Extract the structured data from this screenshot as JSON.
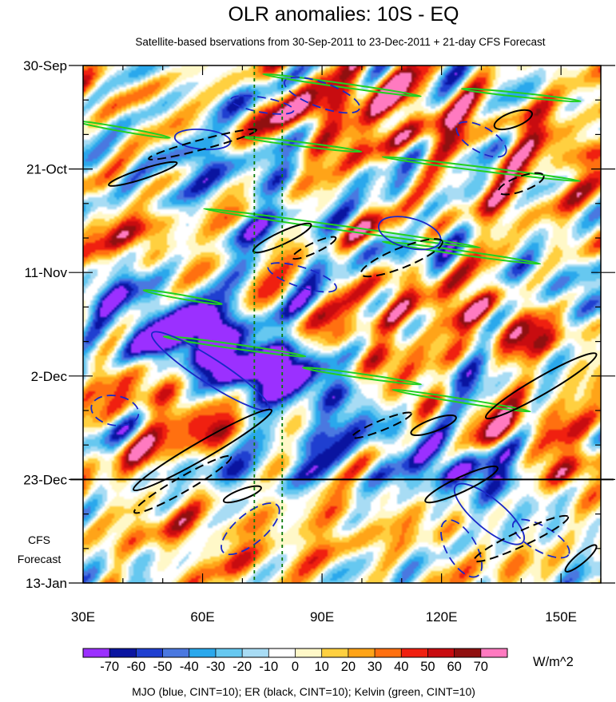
{
  "chart_data": {
    "type": "heatmap",
    "title": "OLR anomalies: 10S - EQ",
    "subtitle": "Satellite-based bservations from 30-Sep-2011 to 23-Dec-2011 + 21-day CFS Forecast",
    "xlabel": "",
    "ylabel": "",
    "x_range": [
      30,
      160
    ],
    "x_ticks": [
      {
        "value": 30,
        "label": "30E"
      },
      {
        "value": 60,
        "label": "60E"
      },
      {
        "value": 90,
        "label": "90E"
      },
      {
        "value": 120,
        "label": "120E"
      },
      {
        "value": 150,
        "label": "150E"
      }
    ],
    "y_range_days": [
      0,
      105
    ],
    "y_ticks": [
      {
        "day": 0,
        "label": "30-Sep"
      },
      {
        "day": 21,
        "label": "21-Oct"
      },
      {
        "day": 42,
        "label": "11-Nov"
      },
      {
        "day": 63,
        "label": "2-Dec"
      },
      {
        "day": 84,
        "label": "23-Dec"
      },
      {
        "day": 105,
        "label": "13-Jan"
      }
    ],
    "observation_end_day": 84,
    "forecast_annotation": [
      "CFS",
      "Forecast"
    ],
    "reference_lines_lon": [
      73,
      80
    ],
    "colorbar": {
      "levels": [
        -70,
        -60,
        -50,
        -40,
        -30,
        -20,
        -10,
        0,
        10,
        20,
        30,
        40,
        50,
        60,
        70
      ],
      "labels": [
        "-70",
        "-60",
        "-50",
        "-40",
        "-30",
        "-20",
        "-10",
        "0",
        "10",
        "20",
        "30",
        "40",
        "50",
        "60",
        "70"
      ],
      "colors": [
        "#9b30ff",
        "#0a14a0",
        "#1f3fd0",
        "#4a78e0",
        "#2aa8ec",
        "#66c8f0",
        "#a8dcf4",
        "#ffffff",
        "#fff8c8",
        "#ffd040",
        "#ffa418",
        "#ff7010",
        "#f02010",
        "#c80c10",
        "#901010",
        "#ff7ac0"
      ],
      "units": "W/m^2"
    },
    "footer": "MJO (blue, CINT=10); ER (black, CINT=10); Kelvin (green, CINT=10)",
    "contour_series": [
      {
        "name": "MJO",
        "color": "#1a28c8"
      },
      {
        "name": "ER",
        "color": "#000000"
      },
      {
        "name": "Kelvin",
        "color": "#22d020"
      }
    ],
    "features": {
      "mjo": [
        {
          "lon": 62,
          "day": 62,
          "sign": "neg",
          "len": 35,
          "wid": 5,
          "angle": 33
        },
        {
          "lon": 60,
          "day": 15,
          "sign": "neg",
          "len": 14,
          "wid": 4,
          "angle": 5
        },
        {
          "lon": 132,
          "day": 91,
          "sign": "neg",
          "len": 22,
          "wid": 6,
          "angle": 40
        },
        {
          "lon": 112,
          "day": 34,
          "sign": "neg",
          "len": 16,
          "wid": 6,
          "angle": 15
        },
        {
          "lon": 130,
          "day": 15,
          "sign": "pos",
          "len": 14,
          "wid": 5,
          "angle": 30
        },
        {
          "lon": 72,
          "day": 94,
          "sign": "pos",
          "len": 18,
          "wid": 6,
          "angle": -40
        },
        {
          "lon": 38,
          "day": 70,
          "sign": "pos",
          "len": 12,
          "wid": 6,
          "angle": 10
        },
        {
          "lon": 145,
          "day": 96,
          "sign": "pos",
          "len": 16,
          "wid": 5,
          "angle": 30
        },
        {
          "lon": 125,
          "day": 98,
          "sign": "pos",
          "len": 16,
          "wid": 6,
          "angle": 60
        },
        {
          "lon": 85,
          "day": 43,
          "sign": "pos",
          "len": 18,
          "wid": 4,
          "angle": 18
        },
        {
          "lon": 75,
          "day": 8,
          "sign": "pos",
          "len": 16,
          "wid": 3,
          "angle": 10
        },
        {
          "lon": 90,
          "day": 6,
          "sign": "pos",
          "len": 20,
          "wid": 5,
          "angle": 20
        }
      ],
      "er": [
        {
          "lon": 60,
          "day": 78,
          "sign": "pos",
          "len": 40,
          "wid": 3.5,
          "angle": -30
        },
        {
          "lon": 45,
          "day": 22,
          "sign": "pos",
          "len": 18,
          "wid": 2,
          "angle": -18
        },
        {
          "lon": 145,
          "day": 65,
          "sign": "pos",
          "len": 32,
          "wid": 3.5,
          "angle": -30
        },
        {
          "lon": 125,
          "day": 85,
          "sign": "pos",
          "len": 20,
          "wid": 3,
          "angle": -25
        },
        {
          "lon": 138,
          "day": 11,
          "sign": "pos",
          "len": 10,
          "wid": 3,
          "angle": -20
        },
        {
          "lon": 80,
          "day": 35,
          "sign": "pos",
          "len": 16,
          "wid": 2.5,
          "angle": -25
        },
        {
          "lon": 118,
          "day": 73,
          "sign": "pos",
          "len": 12,
          "wid": 2.5,
          "angle": -20
        },
        {
          "lon": 70,
          "day": 87,
          "sign": "pos",
          "len": 10,
          "wid": 2,
          "angle": -20
        },
        {
          "lon": 155,
          "day": 100,
          "sign": "pos",
          "len": 10,
          "wid": 2,
          "angle": -40
        },
        {
          "lon": 60,
          "day": 16,
          "sign": "neg",
          "len": 28,
          "wid": 2,
          "angle": -15
        },
        {
          "lon": 110,
          "day": 39,
          "sign": "neg",
          "len": 22,
          "wid": 4,
          "angle": -22
        },
        {
          "lon": 105,
          "day": 73,
          "sign": "neg",
          "len": 16,
          "wid": 2,
          "angle": -22
        },
        {
          "lon": 55,
          "day": 85,
          "sign": "neg",
          "len": 28,
          "wid": 3,
          "angle": -30
        },
        {
          "lon": 140,
          "day": 96,
          "sign": "neg",
          "len": 26,
          "wid": 3,
          "angle": -25
        },
        {
          "lon": 140,
          "day": 24,
          "sign": "neg",
          "len": 12,
          "wid": 3,
          "angle": -20
        },
        {
          "lon": 88,
          "day": 37,
          "sign": "neg",
          "len": 12,
          "wid": 2,
          "angle": -25
        }
      ],
      "kelvin": [
        {
          "lon": 95,
          "day": 33,
          "len": 70,
          "wid": 0.9,
          "angle": 8
        },
        {
          "lon": 125,
          "day": 38,
          "len": 40,
          "wid": 0.8,
          "angle": 8
        },
        {
          "lon": 40,
          "day": 13,
          "len": 24,
          "wid": 0.8,
          "angle": 10
        },
        {
          "lon": 130,
          "day": 21,
          "len": 50,
          "wid": 0.8,
          "angle": 7
        },
        {
          "lon": 85,
          "day": 16,
          "len": 30,
          "wid": 0.7,
          "angle": 7
        },
        {
          "lon": 68,
          "day": 57,
          "len": 36,
          "wid": 0.9,
          "angle": 8
        },
        {
          "lon": 125,
          "day": 68,
          "len": 35,
          "wid": 0.8,
          "angle": 9
        },
        {
          "lon": 95,
          "day": 4,
          "len": 40,
          "wid": 0.7,
          "angle": 8
        },
        {
          "lon": 140,
          "day": 6,
          "len": 30,
          "wid": 0.6,
          "angle": 6
        },
        {
          "lon": 100,
          "day": 63,
          "len": 30,
          "wid": 0.8,
          "angle": 8
        },
        {
          "lon": 55,
          "day": 47,
          "len": 20,
          "wid": 0.5,
          "angle": 10
        }
      ],
      "olr_blobs": [
        {
          "lon": 70,
          "day": 61,
          "amp": -60,
          "rl": 18,
          "rd": 5,
          "angle": 30
        },
        {
          "lon": 60,
          "day": 52,
          "amp": -45,
          "rl": 16,
          "rd": 6,
          "angle": 25
        },
        {
          "lon": 88,
          "day": 63,
          "amp": -45,
          "rl": 12,
          "rd": 4,
          "angle": 15
        },
        {
          "lon": 85,
          "day": 28,
          "amp": -30,
          "rl": 14,
          "rd": 5,
          "angle": 20
        },
        {
          "lon": 60,
          "day": 19,
          "amp": -45,
          "rl": 10,
          "rd": 3,
          "angle": 5
        },
        {
          "lon": 110,
          "day": 38,
          "amp": -45,
          "rl": 10,
          "rd": 3,
          "angle": 10
        },
        {
          "lon": 125,
          "day": 65,
          "amp": -40,
          "rl": 8,
          "rd": 3,
          "angle": 0
        },
        {
          "lon": 120,
          "day": 78,
          "amp": -35,
          "rl": 14,
          "rd": 4,
          "angle": 20
        },
        {
          "lon": 85,
          "day": 78,
          "amp": -35,
          "rl": 12,
          "rd": 4,
          "angle": 20
        },
        {
          "lon": 70,
          "day": 83,
          "amp": -40,
          "rl": 12,
          "rd": 2.5,
          "angle": 0
        },
        {
          "lon": 130,
          "day": 85,
          "amp": -35,
          "rl": 12,
          "rd": 3,
          "angle": 0
        },
        {
          "lon": 45,
          "day": 55,
          "amp": -25,
          "rl": 8,
          "rd": 4,
          "angle": 20
        },
        {
          "lon": 150,
          "day": 46,
          "amp": -25,
          "rl": 10,
          "rd": 4,
          "angle": 20
        },
        {
          "lon": 90,
          "day": 12,
          "amp": 55,
          "rl": 10,
          "rd": 5,
          "angle": 20
        },
        {
          "lon": 112,
          "day": 8,
          "amp": 40,
          "rl": 10,
          "rd": 5,
          "angle": 10
        },
        {
          "lon": 150,
          "day": 15,
          "amp": 45,
          "rl": 12,
          "rd": 4,
          "angle": 20
        },
        {
          "lon": 80,
          "day": 70,
          "amp": 30,
          "rl": 10,
          "rd": 5,
          "angle": 10
        },
        {
          "lon": 55,
          "day": 70,
          "amp": 35,
          "rl": 10,
          "rd": 4,
          "angle": 15
        },
        {
          "lon": 48,
          "day": 80,
          "amp": 35,
          "rl": 8,
          "rd": 4,
          "angle": 10
        },
        {
          "lon": 110,
          "day": 66,
          "amp": 30,
          "rl": 8,
          "rd": 4,
          "angle": 10
        },
        {
          "lon": 145,
          "day": 72,
          "amp": 35,
          "rl": 12,
          "rd": 5,
          "angle": 15
        },
        {
          "lon": 115,
          "day": 48,
          "amp": 35,
          "rl": 14,
          "rd": 5,
          "angle": 10
        },
        {
          "lon": 100,
          "day": 33,
          "amp": 30,
          "rl": 8,
          "rd": 4,
          "angle": 20
        },
        {
          "lon": 85,
          "day": 96,
          "amp": 30,
          "rl": 12,
          "rd": 5,
          "angle": 0
        },
        {
          "lon": 60,
          "day": 94,
          "amp": 25,
          "rl": 10,
          "rd": 4,
          "angle": 0
        },
        {
          "lon": 155,
          "day": 86,
          "amp": 40,
          "rl": 6,
          "rd": 3,
          "angle": 0
        },
        {
          "lon": 140,
          "day": 55,
          "amp": 30,
          "rl": 10,
          "rd": 4,
          "angle": 20
        },
        {
          "lon": 135,
          "day": 30,
          "amp": 30,
          "rl": 10,
          "rd": 4,
          "angle": 10
        },
        {
          "lon": 45,
          "day": 35,
          "amp": 30,
          "rl": 8,
          "rd": 5,
          "angle": 20
        },
        {
          "lon": 105,
          "day": 56,
          "amp": 25,
          "rl": 10,
          "rd": 4,
          "angle": 10
        }
      ],
      "seed": 7
    }
  }
}
